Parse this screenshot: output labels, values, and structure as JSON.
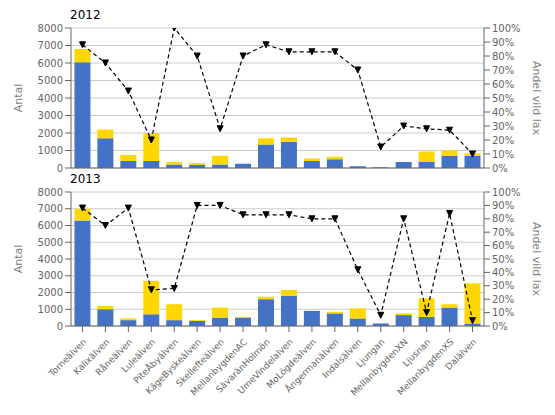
{
  "chart_data": [
    {
      "type": "bar",
      "title": "2012",
      "stacked": true,
      "grid": true,
      "tick_labels": "y",
      "categories": [
        "Torneälven",
        "Kalixälven",
        "Råneälven",
        "Luleälven",
        "PiteÅbyälven",
        "KägeByskeälven",
        "Skellefteälven",
        "MellanbygdenAC",
        "SävaränHolmön",
        "UmeVindelalven",
        "MoLögdeälven",
        "Ångermanälven",
        "Indalsälven",
        "Ljungan",
        "MellanbygdenXN",
        "Ljusnan",
        "MellanbygdenXS",
        "Dalälven"
      ],
      "y_label": "Antal",
      "y2_label": "Andel vild lax",
      "ylim": [
        0,
        8000
      ],
      "yticks": [
        0,
        1000,
        2000,
        3000,
        4000,
        5000,
        6000,
        7000,
        8000
      ],
      "y2lim": [
        0,
        100
      ],
      "y2ticks": [
        {
          "value": 0,
          "label": "0%"
        },
        {
          "value": 10,
          "label": "10%"
        },
        {
          "value": 20,
          "label": "20%"
        },
        {
          "value": 30,
          "label": "30%"
        },
        {
          "value": 40,
          "label": "40%"
        },
        {
          "value": 50,
          "label": "50%"
        },
        {
          "value": 60,
          "label": "60%"
        },
        {
          "value": 70,
          "label": "70%"
        },
        {
          "value": 80,
          "label": "80%"
        },
        {
          "value": 90,
          "label": "90%"
        },
        {
          "value": 100,
          "label": "100%"
        }
      ],
      "series": [
        {
          "color": "#4472C4",
          "values": [
            6050,
            1700,
            400,
            400,
            200,
            180,
            200,
            250,
            1350,
            1500,
            400,
            500,
            100,
            50,
            350,
            350,
            700,
            700
          ]
        },
        {
          "color": "#FFD700",
          "values": [
            750,
            500,
            350,
            1600,
            150,
            100,
            500,
            0,
            350,
            250,
            150,
            150,
            0,
            0,
            0,
            600,
            300,
            150
          ]
        },
        {
          "type": "line",
          "axis": "y2",
          "color": "#000000",
          "line_style": "dashed",
          "marker": "triangle_down",
          "values": [
            88,
            75,
            55,
            20,
            100,
            80,
            28,
            80,
            88,
            83,
            83,
            83,
            70,
            15,
            30,
            28,
            27,
            10
          ]
        }
      ]
    },
    {
      "type": "bar",
      "title": "2013",
      "stacked": true,
      "grid": true,
      "categories": [
        "Torneälven",
        "Kalixälven",
        "Råneälven",
        "Luleälven",
        "PiteÅbyälven",
        "KägeByskeälven",
        "Skellefteälven",
        "MellanbygdenAC",
        "SävaränHolmön",
        "UmeVindelalven",
        "MoLögdeälven",
        "Ångermanälven",
        "Indalsälven",
        "Ljungan",
        "MellanbygdenXN",
        "Ljusnan",
        "MellanbygdenXS",
        "Dalälven"
      ],
      "y_label": "Antal",
      "y2_label": "Andel vild lax",
      "ylim": [
        0,
        8000
      ],
      "yticks": [
        0,
        1000,
        2000,
        3000,
        4000,
        5000,
        6000,
        7000,
        8000
      ],
      "y2lim": [
        0,
        100
      ],
      "y2ticks": [
        {
          "value": 0,
          "label": "0%"
        },
        {
          "value": 10,
          "label": "10%"
        },
        {
          "value": 20,
          "label": "20%"
        },
        {
          "value": 30,
          "label": "30%"
        },
        {
          "value": 40,
          "label": "40%"
        },
        {
          "value": 50,
          "label": "50%"
        },
        {
          "value": 60,
          "label": "60%"
        },
        {
          "value": 70,
          "label": "70%"
        },
        {
          "value": 80,
          "label": "80%"
        },
        {
          "value": 90,
          "label": "90%"
        },
        {
          "value": 100,
          "label": "100%"
        }
      ],
      "series": [
        {
          "color": "#4472C4",
          "values": [
            6300,
            1000,
            350,
            700,
            350,
            300,
            500,
            500,
            1600,
            1800,
            900,
            750,
            450,
            150,
            650,
            550,
            1100,
            150
          ]
        },
        {
          "color": "#FFD700",
          "values": [
            700,
            200,
            100,
            2000,
            950,
            50,
            600,
            50,
            150,
            350,
            0,
            100,
            600,
            0,
            100,
            1100,
            200,
            2400
          ]
        },
        {
          "type": "line",
          "axis": "y2",
          "color": "#000000",
          "line_style": "dashed",
          "marker": "triangle_down",
          "values": [
            88,
            75,
            88,
            27,
            28,
            90,
            90,
            83,
            83,
            83,
            80,
            80,
            42,
            8,
            80,
            10,
            84,
            4
          ]
        }
      ]
    }
  ]
}
